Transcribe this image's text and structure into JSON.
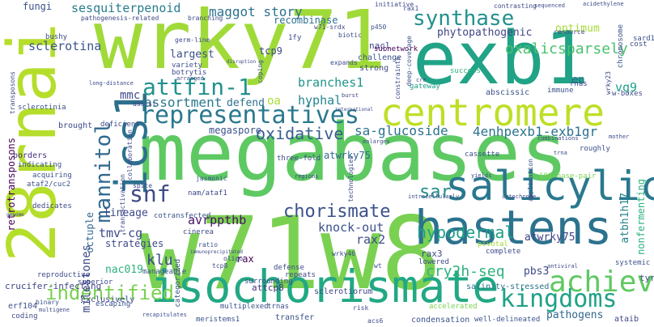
{
  "words": [
    {
      "text": "megabases",
      "color": "#5ec962"
    },
    {
      "text": "w71w8",
      "color": "#7ad151"
    },
    {
      "text": "wrky71",
      "color": "#a0da39"
    },
    {
      "text": "exb1",
      "color": "#20a386"
    },
    {
      "text": "28rnai",
      "color": "#b5de2b"
    },
    {
      "text": "isochorismate",
      "color": "#22a884"
    },
    {
      "text": "hastens",
      "color": "#2c728e"
    },
    {
      "text": "centromere",
      "color": "#bddf26"
    },
    {
      "text": "salicylic",
      "color": "#2a788e"
    },
    {
      "text": "ics1",
      "color": "#2d708e"
    },
    {
      "text": "representatives",
      "color": "#2a788e"
    },
    {
      "text": "synthase",
      "color": "#21918c"
    },
    {
      "text": "achieve",
      "color": "#5ec962"
    },
    {
      "text": "kingdoms",
      "color": "#1fa187"
    },
    {
      "text": "mannitol",
      "color": "#31688e"
    },
    {
      "text": "attfin-1",
      "color": "#21918c"
    },
    {
      "text": "chorismate",
      "color": "#3b528b"
    },
    {
      "text": "snf",
      "color": "#3e4a89"
    },
    {
      "text": "sar",
      "color": "#228c8d"
    },
    {
      "text": "hypodermal",
      "color": "#1f9e89"
    },
    {
      "text": "oxalicsparsely",
      "color": "#4ac16d"
    },
    {
      "text": "oxidative",
      "color": "#365d8d"
    },
    {
      "text": "indentified",
      "color": "#7ad151"
    },
    {
      "text": "cry2h-seq",
      "color": "#2db27d"
    },
    {
      "text": "4enhpexb1-exb1gr",
      "color": "#2c728e"
    },
    {
      "text": "sa-glucoside",
      "color": "#2c728e"
    },
    {
      "text": "maggot story",
      "color": "#2c728e"
    },
    {
      "text": "sesquiterpenoid",
      "color": "#287c8e"
    },
    {
      "text": "branches1",
      "color": "#1f948c"
    },
    {
      "text": "hyphal",
      "color": "#25848e"
    },
    {
      "text": "assortment",
      "color": "#2a788e"
    },
    {
      "text": "mmc",
      "color": "#3e4a89"
    },
    {
      "text": "defend",
      "color": "#2c728e"
    },
    {
      "text": "oa",
      "color": "#aadc32"
    },
    {
      "text": "sclerotina",
      "color": "#3a548c"
    },
    {
      "text": "recombinase",
      "color": "#2c728e"
    },
    {
      "text": "phytopathogenic",
      "color": "#404688"
    },
    {
      "text": "optimum",
      "color": "#a5db36"
    },
    {
      "text": "tcp9",
      "color": "#3e4a89"
    },
    {
      "text": "largest",
      "color": "#3b528b"
    },
    {
      "text": "lineage",
      "color": "#3e4a89"
    },
    {
      "text": "tmv-cg",
      "color": "#3e4a89"
    },
    {
      "text": "octuple",
      "color": "#31688e"
    },
    {
      "text": "strategies",
      "color": "#3e4a89"
    },
    {
      "text": "klu",
      "color": "#3e4a89"
    },
    {
      "text": "nac019",
      "color": "#2db27d"
    },
    {
      "text": "avrppthb",
      "color": "#471164"
    },
    {
      "text": "knock-out",
      "color": "#3b528b"
    },
    {
      "text": "rax2",
      "color": "#3e4a89"
    },
    {
      "text": "pbs3",
      "color": "#3e4a89"
    },
    {
      "text": "atwrky75",
      "color": "#414487"
    },
    {
      "text": "atbh1h17",
      "color": "#26828e"
    },
    {
      "text": "nonfermenting",
      "color": "#2db27d"
    },
    {
      "text": "megaspore",
      "color": "#3b528b"
    },
    {
      "text": "milestones",
      "color": "#3e4a89"
    },
    {
      "text": "pathogens",
      "color": "#31688e"
    },
    {
      "text": "fungi",
      "color": "#3b528b"
    },
    {
      "text": "en",
      "color": "#2c728e"
    },
    {
      "text": "vq9",
      "color": "#1f9e89"
    },
    {
      "text": "retrotransposons",
      "color": "#440154"
    },
    {
      "text": "crucifer-infecting",
      "color": "#404688"
    },
    {
      "text": "erf104",
      "color": "#3b528b"
    },
    {
      "text": "attcp8",
      "color": "#46307e"
    },
    {
      "text": "rax",
      "color": "#440154"
    },
    {
      "text": "rax3",
      "color": "#3e4a89"
    },
    {
      "text": "atwrky75",
      "color": "#31688e"
    },
    {
      "text": "sclerotiorum",
      "color": "#404688"
    },
    {
      "text": "condensation",
      "color": "#3b528b"
    },
    {
      "text": "ataib",
      "color": "#404688"
    },
    {
      "text": "exclusively",
      "color": "#3e4a89"
    },
    {
      "text": "multiplexed",
      "color": "#3b528b"
    },
    {
      "text": "transfer",
      "color": "#3b528b"
    },
    {
      "text": "meristems1",
      "color": "#3b528b"
    },
    {
      "text": "well-delineated",
      "color": "#3b528b"
    },
    {
      "text": "accelerated",
      "color": "#7ad151"
    },
    {
      "text": "salinity-stressed",
      "color": "#2c728e"
    },
    {
      "text": "nacl",
      "color": "#404688"
    },
    {
      "text": "subnetwork",
      "color": "#440154"
    },
    {
      "text": "challenge",
      "color": "#3b528b"
    },
    {
      "text": "strong",
      "color": "#3e4a89"
    },
    {
      "text": "success",
      "color": "#2db27d"
    },
    {
      "text": "abscissic",
      "color": "#3b528b"
    },
    {
      "text": "immune",
      "color": "#3b528b"
    },
    {
      "text": "w-boxes",
      "color": "#3e4a89"
    },
    {
      "text": "gateway",
      "color": "#1f9e89"
    },
    {
      "text": "rnas",
      "color": "#3e4a89"
    },
    {
      "text": "brought",
      "color": "#3e4a89"
    },
    {
      "text": "borders",
      "color": "#46307e"
    },
    {
      "text": "indicating",
      "color": "#3b528b"
    },
    {
      "text": "acquiring",
      "color": "#3b528b"
    },
    {
      "text": "ataf2/cuc2",
      "color": "#3b528b"
    },
    {
      "text": "dedicates",
      "color": "#404688"
    },
    {
      "text": "reproductive",
      "color": "#3e4a89"
    },
    {
      "text": "binary",
      "color": "#3b528b"
    },
    {
      "text": "coding",
      "color": "#3e4a89"
    },
    {
      "text": "superior",
      "color": "#3e4a89"
    },
    {
      "text": "escaping",
      "color": "#3b528b"
    },
    {
      "text": "categorized",
      "color": "#3b528b"
    },
    {
      "text": "manageable",
      "color": "#3b528b"
    },
    {
      "text": "cotransfected",
      "color": "#3b528b"
    },
    {
      "text": "cinerea",
      "color": "#3e4a89"
    },
    {
      "text": "ratio",
      "color": "#3b528b"
    },
    {
      "text": "wrky46",
      "color": "#3e4a89"
    },
    {
      "text": "lowered",
      "color": "#3e4a89"
    },
    {
      "text": "complete",
      "color": "#3e4a89"
    },
    {
      "text": "defense",
      "color": "#3e4a89"
    },
    {
      "text": "repeats",
      "color": "#3e4a89"
    },
    {
      "text": "surrounding",
      "color": "#3e4a89"
    },
    {
      "text": "trnas",
      "color": "#3e4a89"
    },
    {
      "text": "variety",
      "color": "#3b528b"
    },
    {
      "text": "botrytis",
      "color": "#3e4a89"
    },
    {
      "text": "1fy",
      "color": "#3e4a89"
    },
    {
      "text": "coping",
      "color": "#3b528b"
    },
    {
      "text": "jasmonic",
      "color": "#3b528b"
    },
    {
      "text": "three-fold",
      "color": "#3e4a89"
    },
    {
      "text": "cassette",
      "color": "#3b528b"
    },
    {
      "text": "technologies",
      "color": "#3e4a89"
    },
    {
      "text": "roughly",
      "color": "#3b528b"
    },
    {
      "text": "180-base-pair",
      "color": "#7ad151"
    },
    {
      "text": "application",
      "color": "#3b528b"
    },
    {
      "text": "pivotal",
      "color": "#a0da39"
    },
    {
      "text": "systemic",
      "color": "#3b528b"
    },
    {
      "text": "tyr",
      "color": "#3e4a89"
    },
    {
      "text": "cost",
      "color": "#3e4a89"
    },
    {
      "text": "sard1",
      "color": "#3b528b"
    },
    {
      "text": "chromosome",
      "color": "#3b528b"
    },
    {
      "text": "constraints",
      "color": "#3e4a89"
    },
    {
      "text": "deep-coverage",
      "color": "#3b528b"
    },
    {
      "text": "wrky23",
      "color": "#3e4a89"
    },
    {
      "text": "branching",
      "color": "#3e4a89"
    },
    {
      "text": "pathogenesis-related",
      "color": "#3e4a89"
    },
    {
      "text": "germ-line",
      "color": "#3e4a89"
    },
    {
      "text": "biotic",
      "color": "#3e4a89"
    },
    {
      "text": "w71-srdx",
      "color": "#3e4a89"
    },
    {
      "text": "p450",
      "color": "#3b528b"
    },
    {
      "text": "expands",
      "color": "#3e4a89"
    },
    {
      "text": "initiative",
      "color": "#3e4a89"
    },
    {
      "text": "rax1",
      "color": "#3e4a89"
    },
    {
      "text": "contrasting",
      "color": "#3e4a89"
    },
    {
      "text": "resource",
      "color": "#3e4a89"
    },
    {
      "text": "bushy",
      "color": "#3e4a89"
    },
    {
      "text": "sclerotinia",
      "color": "#3b528b"
    },
    {
      "text": "transposons",
      "color": "#3e4a89"
    },
    {
      "text": "deficient",
      "color": "#3e4a89"
    },
    {
      "text": "assist",
      "color": "#3e4a89"
    },
    {
      "text": "immunoprecipitated",
      "color": "#3e4a89"
    },
    {
      "text": "transactivation",
      "color": "#3e4a89"
    },
    {
      "text": "spite",
      "color": "#3e4a89"
    },
    {
      "text": "collaboration",
      "color": "#3e4a89"
    },
    {
      "text": "oligo",
      "color": "#3e4a89"
    },
    {
      "text": "tcp8",
      "color": "#3e4a89"
    },
    {
      "text": "wt",
      "color": "#3e4a89"
    },
    {
      "text": "risk",
      "color": "#3e4a89"
    },
    {
      "text": "acs6",
      "color": "#3e4a89"
    },
    {
      "text": "cytochrome",
      "color": "#3e4a89"
    },
    {
      "text": "intracellularly",
      "color": "#3e4a89"
    },
    {
      "text": "regions",
      "color": "#3e4a89"
    },
    {
      "text": "yields",
      "color": "#3e4a89"
    },
    {
      "text": "antiviral",
      "color": "#3e4a89"
    },
    {
      "text": "recapitulates",
      "color": "#3e4a89"
    },
    {
      "text": "multigene",
      "color": "#3e4a89"
    },
    {
      "text": "disruption",
      "color": "#3e4a89"
    },
    {
      "text": "enlarges",
      "color": "#3e4a89"
    },
    {
      "text": "international",
      "color": "#3e4a89"
    },
    {
      "text": "long-distance",
      "color": "#3e4a89"
    },
    {
      "text": "arranged",
      "color": "#3e4a89"
    },
    {
      "text": "burst",
      "color": "#3e4a89"
    },
    {
      "text": "combinations",
      "color": "#3e4a89"
    },
    {
      "text": "mother",
      "color": "#3e4a89"
    },
    {
      "text": "sequenced",
      "color": "#3e4a89"
    },
    {
      "text": "cre",
      "color": "#3e4a89"
    },
    {
      "text": "acidethylene",
      "color": "#3e4a89"
    },
    {
      "text": "trna",
      "color": "#3e4a89"
    },
    {
      "text": "genome",
      "color": "#3e4a89"
    },
    {
      "text": "nam/ataf1",
      "color": "#3e4a89"
    }
  ]
}
